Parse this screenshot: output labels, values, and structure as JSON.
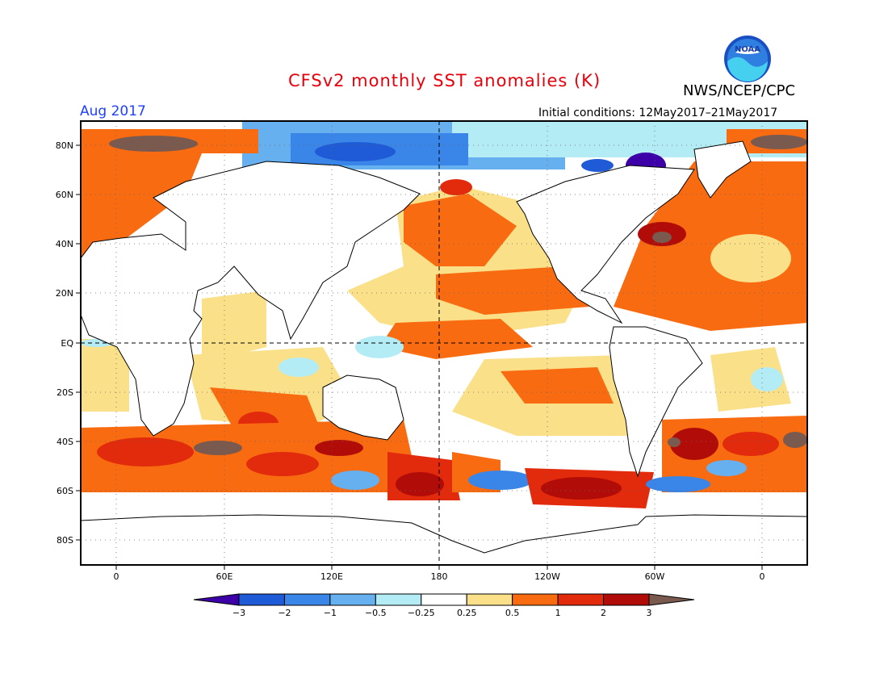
{
  "title": "CFSv2 monthly SST anomalies (K)",
  "valid_month": "Aug 2017",
  "initial_conditions": "Initial conditions: 12May2017–21May2017",
  "agency": "NWS/NCEP/CPC",
  "logo": {
    "text": "NOAA",
    "icon": "noaa-logo-icon"
  },
  "map": {
    "lat_labels": [
      "80N",
      "60N",
      "40N",
      "20N",
      "EQ",
      "20S",
      "40S",
      "60S",
      "80S"
    ],
    "lon_labels": [
      "0",
      "60E",
      "120E",
      "180",
      "120W",
      "60W",
      "0"
    ]
  },
  "colorbar": {
    "tick_labels": [
      "−3",
      "−2",
      "−1",
      "−0.5",
      "−0.25",
      "0.25",
      "0.5",
      "1",
      "2",
      "3"
    ],
    "bins": [
      {
        "color": "#3d00a8"
      },
      {
        "color": "#1f5bd6"
      },
      {
        "color": "#3a86e8"
      },
      {
        "color": "#67b0f0"
      },
      {
        "color": "#b4ecf5"
      },
      {
        "color": "#ffffff"
      },
      {
        "color": "#fbe08a"
      },
      {
        "color": "#f86b10"
      },
      {
        "color": "#e22a0c"
      },
      {
        "color": "#b20c08"
      },
      {
        "color": "#7a5a4e"
      }
    ]
  }
}
